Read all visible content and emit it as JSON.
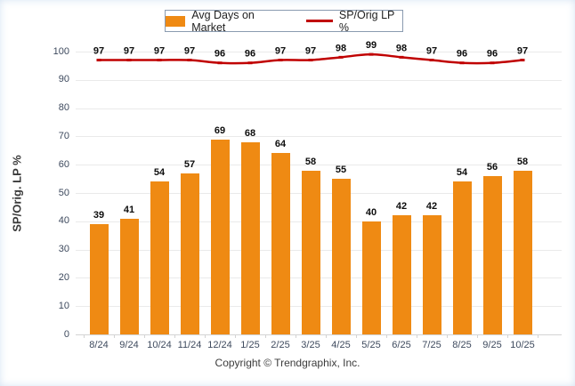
{
  "legend": {
    "bar_label": "Avg Days on Market",
    "line_label": "SP/Orig LP %"
  },
  "footer": "Copyright © Trendgraphix, Inc.",
  "colors": {
    "bar": "#EF8A13",
    "line": "#C00000",
    "grid": "#EAEAEA",
    "axis": "#D3D3D3",
    "tick_text": "#3E4A5E",
    "value_text": "#0D0D0D",
    "legend_border": "#8A9BB0"
  },
  "chart_data": {
    "type": "bar",
    "title": "",
    "xlabel": "",
    "ylabel": "SP/Orig. LP %",
    "ylim": [
      0,
      100
    ],
    "ytick_step": 10,
    "grid": true,
    "legend_position": "top",
    "categories": [
      "8/24",
      "9/24",
      "10/24",
      "11/24",
      "12/24",
      "1/25",
      "2/25",
      "3/25",
      "4/25",
      "5/25",
      "6/25",
      "7/25",
      "8/25",
      "9/25",
      "10/25"
    ],
    "series": [
      {
        "name": "Avg Days on Market",
        "type": "bar",
        "values": [
          39,
          41,
          54,
          57,
          69,
          68,
          64,
          58,
          55,
          40,
          42,
          42,
          54,
          56,
          58
        ]
      },
      {
        "name": "SP/Orig LP %",
        "type": "line",
        "values": [
          97,
          97,
          97,
          97,
          96,
          96,
          97,
          97,
          98,
          99,
          98,
          97,
          96,
          96,
          97
        ]
      }
    ]
  }
}
